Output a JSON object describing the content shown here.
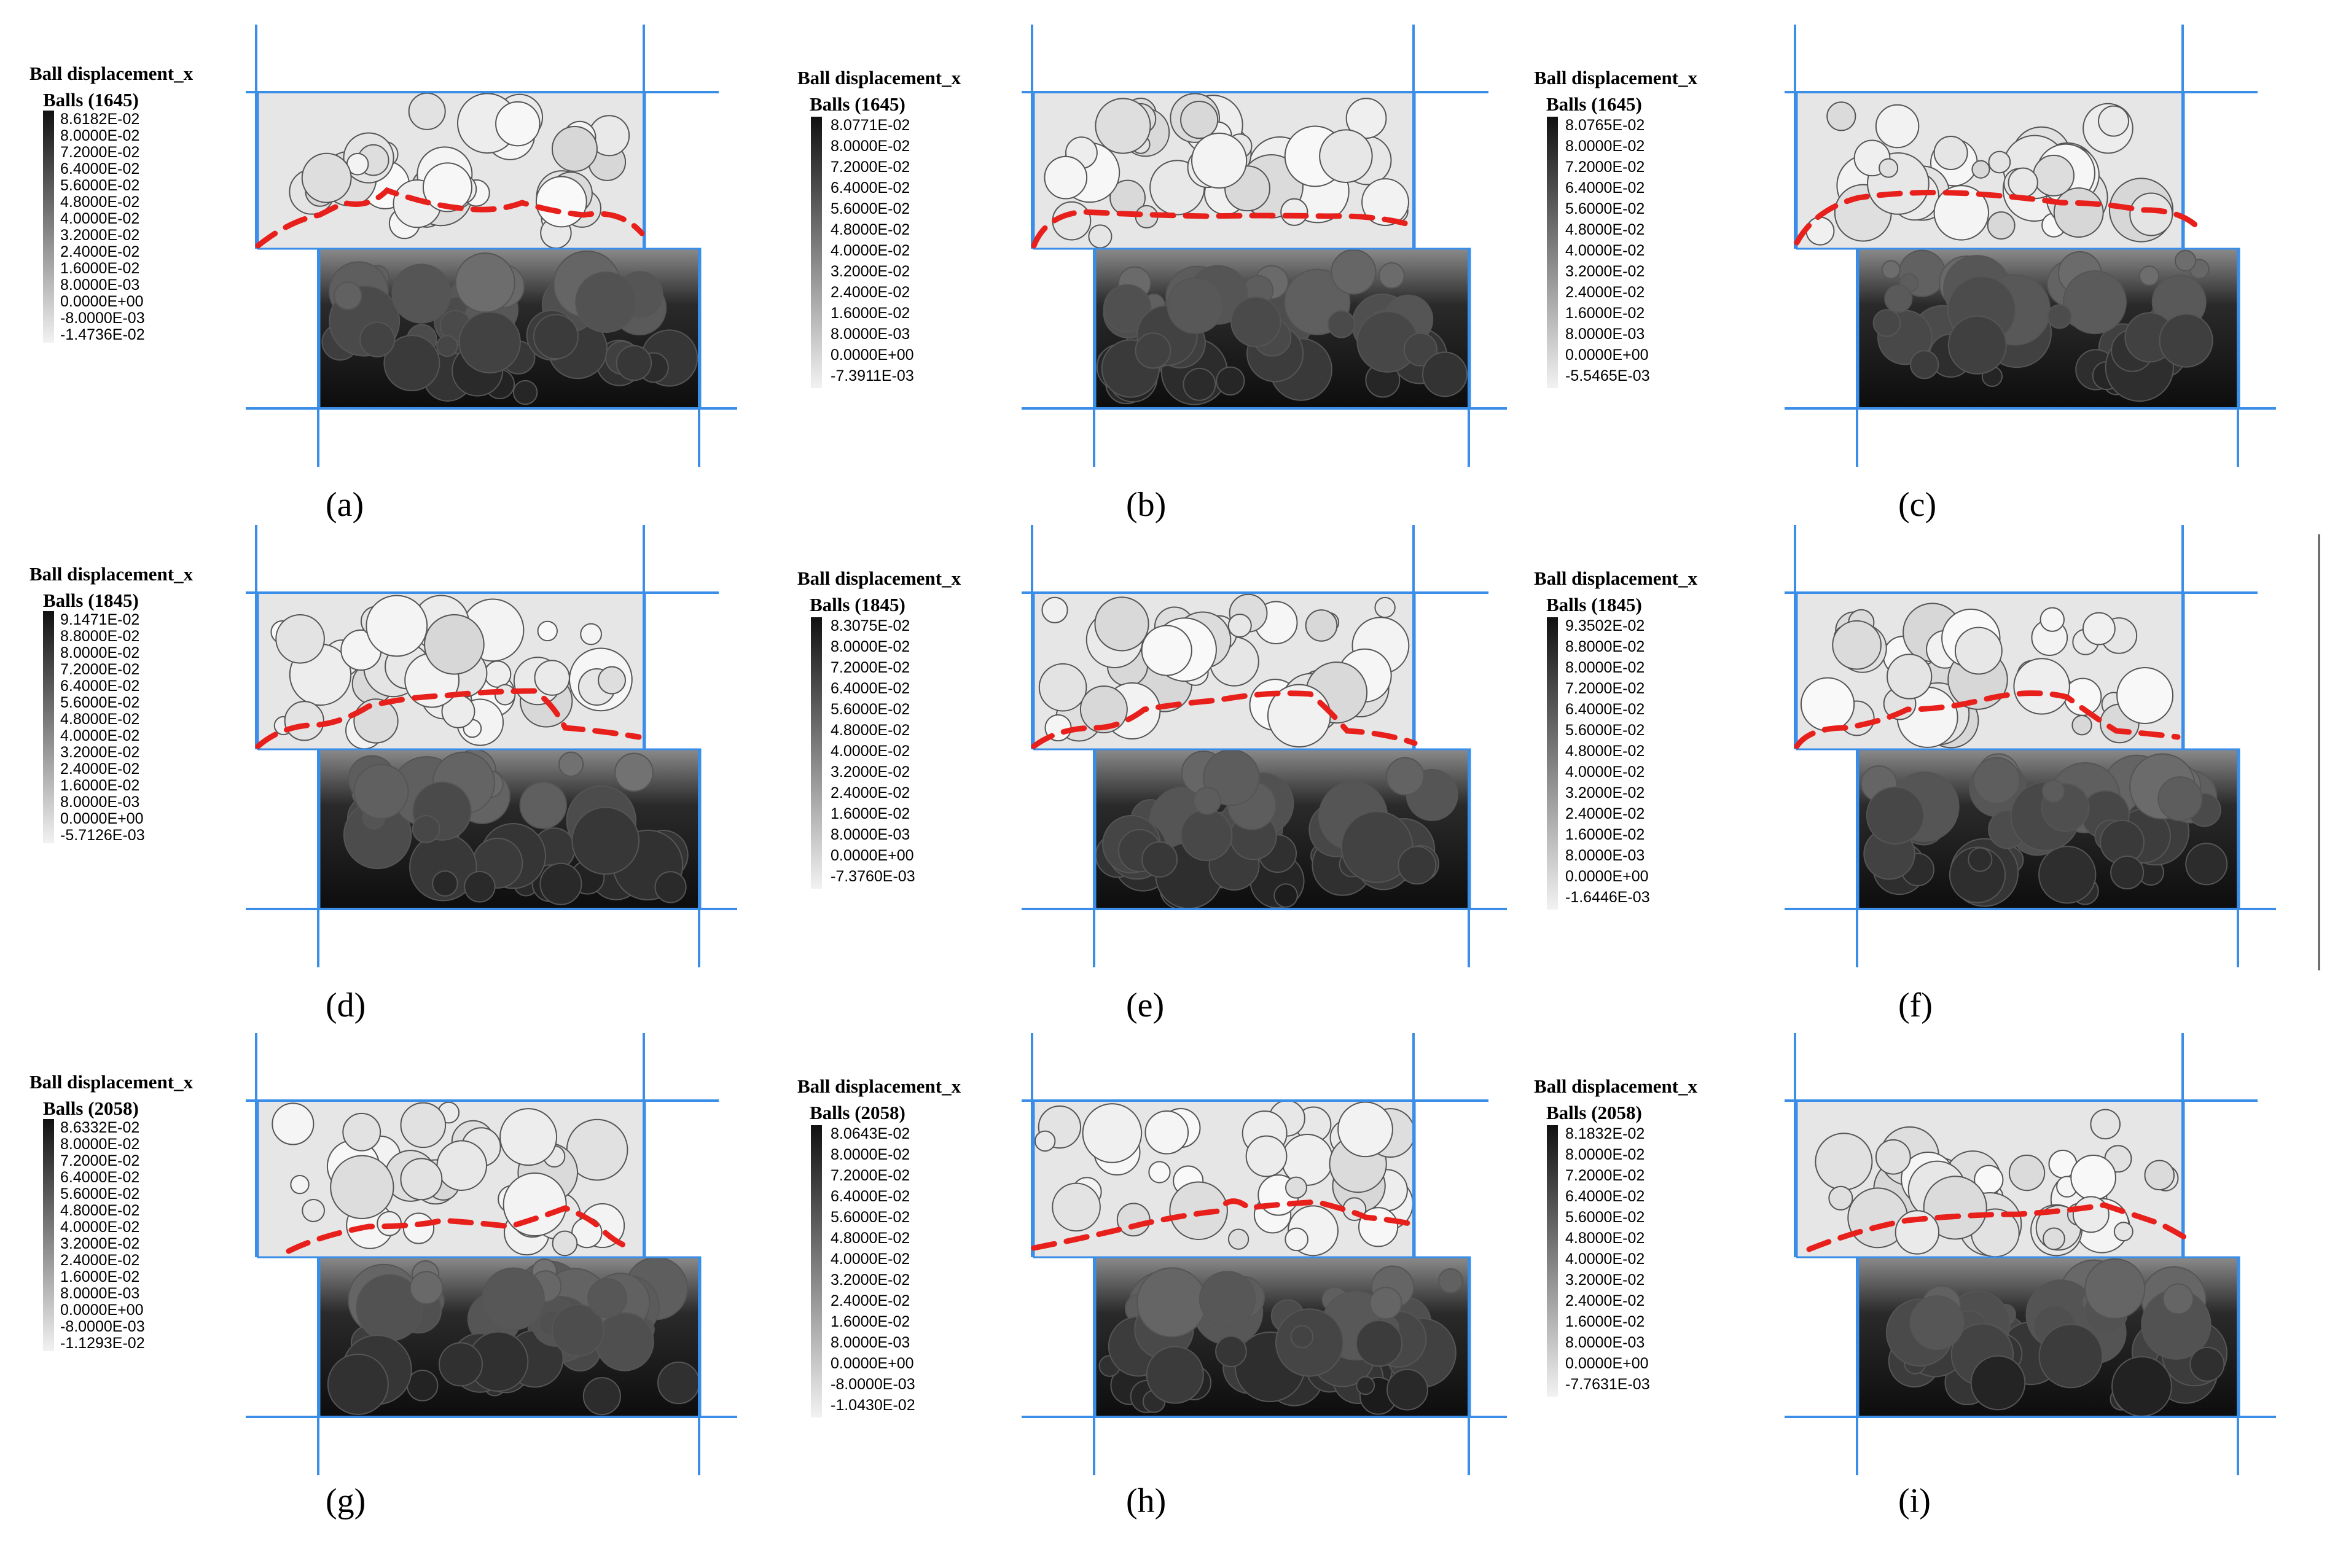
{
  "legend_title": "Ball displacement_x",
  "panels": [
    {
      "caption": "(a)",
      "group": "Balls (1645)",
      "values": [
        "8.6182E-02",
        "8.0000E-02",
        "7.2000E-02",
        "6.4000E-02",
        "5.6000E-02",
        "4.8000E-02",
        "4.0000E-02",
        "3.2000E-02",
        "2.4000E-02",
        "1.6000E-02",
        "8.0000E-03",
        "0.0000E+00",
        "-8.0000E-03",
        "-1.4736E-02"
      ]
    },
    {
      "caption": "(b)",
      "group": "Balls (1645)",
      "values": [
        "8.0771E-02",
        "8.0000E-02",
        "7.2000E-02",
        "6.4000E-02",
        "5.6000E-02",
        "4.8000E-02",
        "4.0000E-02",
        "3.2000E-02",
        "2.4000E-02",
        "1.6000E-02",
        "8.0000E-03",
        "0.0000E+00",
        "-7.3911E-03"
      ]
    },
    {
      "caption": "(c)",
      "group": "Balls (1645)",
      "values": [
        "8.0765E-02",
        "8.0000E-02",
        "7.2000E-02",
        "6.4000E-02",
        "5.6000E-02",
        "4.8000E-02",
        "4.0000E-02",
        "3.2000E-02",
        "2.4000E-02",
        "1.6000E-02",
        "8.0000E-03",
        "0.0000E+00",
        "-5.5465E-03"
      ]
    },
    {
      "caption": "(d)",
      "group": "Balls (1845)",
      "values": [
        "9.1471E-02",
        "8.8000E-02",
        "8.0000E-02",
        "7.2000E-02",
        "6.4000E-02",
        "5.6000E-02",
        "4.8000E-02",
        "4.0000E-02",
        "3.2000E-02",
        "2.4000E-02",
        "1.6000E-02",
        "8.0000E-03",
        "0.0000E+00",
        "-5.7126E-03"
      ]
    },
    {
      "caption": "(e)",
      "group": "Balls (1845)",
      "values": [
        "8.3075E-02",
        "8.0000E-02",
        "7.2000E-02",
        "6.4000E-02",
        "5.6000E-02",
        "4.8000E-02",
        "4.0000E-02",
        "3.2000E-02",
        "2.4000E-02",
        "1.6000E-02",
        "8.0000E-03",
        "0.0000E+00",
        "-7.3760E-03"
      ]
    },
    {
      "caption": "(f)",
      "group": "Balls (1845)",
      "values": [
        "9.3502E-02",
        "8.8000E-02",
        "8.0000E-02",
        "7.2000E-02",
        "6.4000E-02",
        "5.6000E-02",
        "4.8000E-02",
        "4.0000E-02",
        "3.2000E-02",
        "2.4000E-02",
        "1.6000E-02",
        "8.0000E-03",
        "0.0000E+00",
        "-1.6446E-03"
      ]
    },
    {
      "caption": "(g)",
      "group": "Balls (2058)",
      "values": [
        "8.6332E-02",
        "8.0000E-02",
        "7.2000E-02",
        "6.4000E-02",
        "5.6000E-02",
        "4.8000E-02",
        "4.0000E-02",
        "3.2000E-02",
        "2.4000E-02",
        "1.6000E-02",
        "8.0000E-03",
        "0.0000E+00",
        "-8.0000E-03",
        "-1.1293E-02"
      ]
    },
    {
      "caption": "(h)",
      "group": "Balls (2058)",
      "values": [
        "8.0643E-02",
        "8.0000E-02",
        "7.2000E-02",
        "6.4000E-02",
        "5.6000E-02",
        "4.8000E-02",
        "4.0000E-02",
        "3.2000E-02",
        "2.4000E-02",
        "1.6000E-02",
        "8.0000E-03",
        "0.0000E+00",
        "-8.0000E-03",
        "-1.0430E-02"
      ]
    },
    {
      "caption": "(i)",
      "group": "Balls (2058)",
      "values": [
        "8.1832E-02",
        "8.0000E-02",
        "7.2000E-02",
        "6.4000E-02",
        "5.6000E-02",
        "4.8000E-02",
        "4.0000E-02",
        "3.2000E-02",
        "2.4000E-02",
        "1.6000E-02",
        "8.0000E-03",
        "0.0000E+00",
        "-7.7631E-03"
      ]
    }
  ],
  "colors": {
    "guide_line": "#3b8ee8",
    "interface_line": "#e8201c",
    "upper_block": "#e6e6e6",
    "lower_block": "#111111",
    "legend_dark": "#111111",
    "legend_light": "#f2f2f2"
  }
}
